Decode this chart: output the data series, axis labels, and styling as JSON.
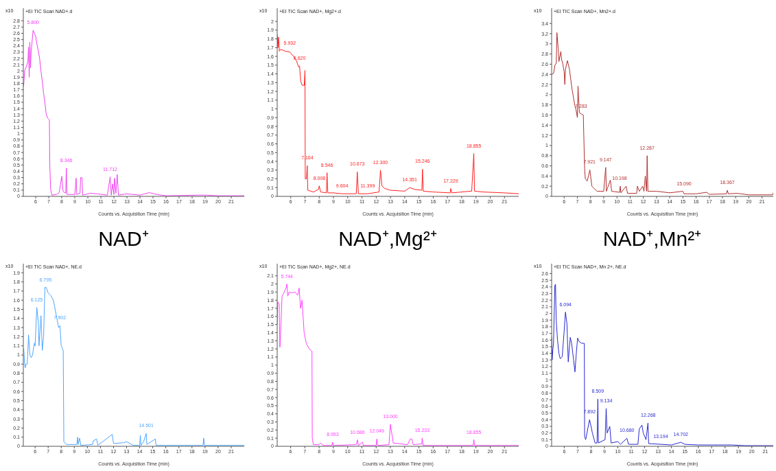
{
  "chart_data": [
    {
      "type": "line",
      "title": "NAD⁺",
      "subtitle": "+EI TIC Scan NAD+.d",
      "xlabel": "Counts vs. Acquisition Time (min)",
      "ylabel": "x10",
      "xlim": [
        5.05,
        22
      ],
      "xticks": [
        6,
        7,
        8,
        9,
        10,
        11,
        12,
        13,
        14,
        15,
        16,
        17,
        18,
        19,
        20,
        21
      ],
      "ylim": [
        0,
        3.0
      ],
      "yticks": [
        0,
        0.1,
        0.2,
        0.3,
        0.4,
        0.5,
        0.6,
        0.7,
        0.8,
        0.9,
        1,
        1.1,
        1.2,
        1.3,
        1.4,
        1.5,
        1.6,
        1.7,
        1.8,
        1.9,
        2,
        2.1,
        2.2,
        2.3,
        2.4,
        2.5,
        2.6,
        2.7,
        2.8
      ],
      "series": [
        {
          "color": "#f040f0",
          "x": [
            5.07,
            5.15,
            5.3,
            5.4,
            5.45,
            5.5,
            5.55,
            5.6,
            5.65,
            5.8,
            5.9,
            6.0,
            6.1,
            6.2,
            6.3,
            6.4,
            6.5,
            6.6,
            6.7,
            6.8,
            6.9,
            7.05,
            7.08,
            7.15,
            7.25,
            7.6,
            7.8,
            8.0,
            8.1,
            8.3,
            8.35,
            8.4,
            9.0,
            9.1,
            9.15,
            9.4,
            9.45,
            9.55,
            9.6,
            10.2,
            10.7,
            11.5,
            11.71,
            11.8,
            11.9,
            12.0,
            12.05,
            12.15,
            12.25,
            12.35,
            13.0,
            14.0,
            14.7,
            15.3,
            16,
            18.5,
            19,
            20,
            22
          ],
          "values": [
            1.75,
            2.0,
            2.08,
            2.15,
            2.38,
            1.9,
            2.46,
            2.05,
            2.3,
            2.65,
            2.6,
            2.55,
            2.42,
            2.32,
            2.2,
            2.0,
            1.85,
            1.65,
            1.5,
            1.32,
            1.25,
            1.22,
            0.5,
            0.1,
            0.02,
            0.03,
            0.06,
            0.32,
            0.08,
            0.05,
            0.45,
            0.03,
            0.03,
            0.29,
            0.03,
            0.05,
            0.3,
            0.3,
            0.02,
            0.05,
            0.04,
            0.02,
            0.31,
            0.02,
            0.2,
            0.03,
            0.29,
            0.05,
            0.35,
            0.02,
            0.04,
            0.02,
            0.06,
            0.03,
            0.01,
            0.02,
            0.02,
            0.01,
            0.01
          ]
        }
      ],
      "annotations": [
        {
          "text": "5.800",
          "x": 5.8,
          "y": 2.65
        },
        {
          "text": "8.346",
          "x": 8.346,
          "y": 0.45
        },
        {
          "text": "11.712",
          "x": 11.712,
          "y": 0.31
        }
      ]
    },
    {
      "type": "line",
      "title": "NAD⁺,Mg²⁺",
      "subtitle": "+EI TIC Scan NAD+, Mg2+.d",
      "xlabel": "Counts vs. Acquisition Time (min)",
      "ylabel": "x10",
      "xlim": [
        5.05,
        22
      ],
      "xticks": [
        6,
        7,
        8,
        9,
        10,
        11,
        12,
        13,
        14,
        15,
        16,
        17,
        18,
        19,
        20,
        21
      ],
      "ylim": [
        0,
        2.15
      ],
      "yticks": [
        0,
        0.1,
        0.2,
        0.3,
        0.4,
        0.5,
        0.6,
        0.7,
        0.8,
        0.9,
        1,
        1.1,
        1.2,
        1.3,
        1.4,
        1.5,
        1.6,
        1.7,
        1.8,
        1.9,
        2
      ],
      "series": [
        {
          "color": "#ff2020",
          "x": [
            5.05,
            5.1,
            5.15,
            5.2,
            5.3,
            5.6,
            5.93,
            6.2,
            6.4,
            6.55,
            6.62,
            6.7,
            6.8,
            6.95,
            7.0,
            7.02,
            7.1,
            7.16,
            7.2,
            7.6,
            7.95,
            8.0,
            8.1,
            8.5,
            8.55,
            8.6,
            9.0,
            9.6,
            10.6,
            10.67,
            10.75,
            11.4,
            12.2,
            12.3,
            12.4,
            12.6,
            13.0,
            14.0,
            14.35,
            14.7,
            15.2,
            15.25,
            15.3,
            16.0,
            17.2,
            17.23,
            17.3,
            18.7,
            18.85,
            18.9,
            19.5,
            21,
            22
          ],
          "values": [
            1.85,
            1.7,
            1.82,
            1.66,
            1.68,
            1.66,
            1.65,
            1.6,
            1.55,
            1.48,
            1.49,
            1.32,
            1.27,
            1.27,
            1.44,
            0.2,
            0.2,
            0.35,
            0.07,
            0.05,
            0.08,
            0.12,
            0.05,
            0.04,
            0.27,
            0.04,
            0.04,
            0.03,
            0.03,
            0.28,
            0.03,
            0.03,
            0.05,
            0.3,
            0.12,
            0.09,
            0.07,
            0.06,
            0.1,
            0.08,
            0.07,
            0.31,
            0.06,
            0.05,
            0.04,
            0.09,
            0.04,
            0.06,
            0.49,
            0.06,
            0.05,
            0.04,
            0.03
          ]
        }
      ],
      "annotations": [
        {
          "text": "5.932",
          "x": 5.932,
          "y": 1.66
        },
        {
          "text": "6.620",
          "x": 6.62,
          "y": 1.49
        },
        {
          "text": "7.164",
          "x": 7.164,
          "y": 0.35
        },
        {
          "text": "8.008",
          "x": 8.008,
          "y": 0.12
        },
        {
          "text": "8.546",
          "x": 8.546,
          "y": 0.27
        },
        {
          "text": "9.604",
          "x": 9.604,
          "y": 0.03
        },
        {
          "text": "10.673",
          "x": 10.673,
          "y": 0.28
        },
        {
          "text": "11.399",
          "x": 11.399,
          "y": 0.03
        },
        {
          "text": "12.300",
          "x": 12.3,
          "y": 0.3
        },
        {
          "text": "14.351",
          "x": 14.351,
          "y": 0.1
        },
        {
          "text": "15.246",
          "x": 15.246,
          "y": 0.31
        },
        {
          "text": "17.229",
          "x": 17.229,
          "y": 0.09
        },
        {
          "text": "18.855",
          "x": 18.855,
          "y": 0.49
        }
      ]
    },
    {
      "type": "line",
      "title": "NAD⁺,Mn²⁺",
      "subtitle": "+EI TIC Scan NAD+, Mn2+.d",
      "xlabel": "Counts vs. Acquisition Time (min)",
      "ylabel": "x10",
      "xlim": [
        5.05,
        21.85
      ],
      "xticks": [
        6,
        7,
        8,
        9,
        10,
        11,
        12,
        13,
        14,
        15,
        16,
        17,
        18,
        19,
        20,
        21
      ],
      "ylim": [
        0,
        3.7
      ],
      "yticks": [
        0,
        0.2,
        0.4,
        0.6,
        0.8,
        1,
        1.2,
        1.4,
        1.6,
        1.8,
        2,
        2.2,
        2.4,
        2.6,
        2.8,
        3,
        3.2,
        3.4
      ],
      "series": [
        {
          "color": "#b03030",
          "x": [
            5.07,
            5.2,
            5.3,
            5.4,
            5.45,
            5.55,
            5.6,
            5.75,
            5.8,
            5.9,
            6.0,
            6.05,
            6.1,
            6.25,
            6.4,
            6.6,
            6.8,
            6.9,
            7.0,
            7.05,
            7.15,
            7.3,
            7.45,
            7.55,
            7.6,
            7.75,
            7.95,
            8.1,
            8.5,
            9.0,
            9.05,
            9.15,
            9.2,
            9.5,
            9.6,
            10.2,
            10.25,
            10.3,
            10.7,
            10.8,
            11.5,
            11.55,
            11.7,
            11.95,
            12.05,
            12.15,
            12.25,
            12.29,
            12.35,
            13,
            14,
            15,
            15.09,
            16,
            16.8,
            17,
            18.3,
            18.37,
            18.45,
            19.1,
            20,
            21.8,
            21.85
          ],
          "values": [
            2.4,
            2.42,
            2.58,
            2.62,
            3.22,
            2.9,
            2.65,
            2.85,
            2.7,
            2.6,
            2.45,
            2.2,
            2.5,
            2.67,
            2.5,
            2.1,
            1.8,
            1.7,
            1.55,
            2.17,
            1.65,
            1.62,
            1.6,
            0.55,
            0.35,
            0.3,
            0.52,
            0.2,
            0.1,
            0.1,
            0.27,
            0.57,
            0.1,
            0.32,
            0.1,
            0.08,
            0.2,
            0.07,
            0.2,
            0.06,
            0.06,
            0.2,
            0.1,
            0.2,
            0.1,
            0.4,
            0.1,
            0.8,
            0.1,
            0.1,
            0.07,
            0.1,
            0.05,
            0.05,
            0.08,
            0.04,
            0.05,
            0.12,
            0.05,
            0.06,
            0.03,
            0.03,
            0.07
          ]
        }
      ],
      "annotations": [
        {
          "text": "7.283",
          "x": 7.283,
          "y": 1.62
        },
        {
          "text": "7.921",
          "x": 7.921,
          "y": 0.52
        },
        {
          "text": "9.147",
          "x": 9.147,
          "y": 0.57
        },
        {
          "text": "10.198",
          "x": 10.198,
          "y": 0.2
        },
        {
          "text": "12.287",
          "x": 12.287,
          "y": 0.8
        },
        {
          "text": "15.090",
          "x": 15.09,
          "y": 0.1
        },
        {
          "text": "18.367",
          "x": 18.367,
          "y": 0.12
        }
      ]
    },
    {
      "type": "line",
      "subtitle": "+EI TIC Scan NAD+, NE.d",
      "xlabel": "Counts vs. Acquisition Time (min)",
      "ylabel": "x10",
      "xlim": [
        5.1,
        22
      ],
      "xticks": [
        6,
        7,
        8,
        9,
        10,
        11,
        12,
        13,
        14,
        15,
        16,
        17,
        18,
        19,
        20,
        21
      ],
      "ylim": [
        0,
        2.0
      ],
      "yticks": [
        0,
        0.1,
        0.2,
        0.3,
        0.4,
        0.5,
        0.6,
        0.7,
        0.8,
        0.9,
        1,
        1.1,
        1.2,
        1.3,
        1.4,
        1.5,
        1.6,
        1.7,
        1.8,
        1.9
      ],
      "series": [
        {
          "color": "#4da6ff",
          "x": [
            5.13,
            5.2,
            5.25,
            5.3,
            5.4,
            5.5,
            5.6,
            5.7,
            5.8,
            5.95,
            6.0,
            6.13,
            6.25,
            6.3,
            6.45,
            6.55,
            6.65,
            6.75,
            6.85,
            7.0,
            7.2,
            7.4,
            7.6,
            7.8,
            7.9,
            8.0,
            8.15,
            8.2,
            8.4,
            9.2,
            9.25,
            9.3,
            9.4,
            9.5,
            10.4,
            10.45,
            10.7,
            10.8,
            11.9,
            12.0,
            12.8,
            13.0,
            13.5,
            14.0,
            14.05,
            14.1,
            14.3,
            14.5,
            14.55,
            15.2,
            15.25,
            16,
            18.85,
            18.9,
            18.95,
            22
          ],
          "values": [
            1.07,
            0.9,
            0.86,
            0.9,
            0.9,
            1.22,
            1.0,
            0.97,
            1.0,
            1.13,
            1.1,
            1.52,
            1.35,
            1.1,
            1.43,
            1.05,
            1.2,
            1.74,
            1.74,
            1.68,
            1.65,
            1.6,
            1.45,
            1.3,
            1.32,
            1.1,
            1.05,
            0.05,
            0.02,
            0.02,
            0.1,
            0.02,
            0.09,
            0.01,
            0.02,
            0.06,
            0.08,
            0.01,
            0.13,
            0.03,
            0.04,
            0.05,
            0.01,
            0.01,
            0.12,
            0.01,
            0.05,
            0.14,
            0.02,
            0.08,
            0.01,
            0.01,
            0.01,
            0.09,
            0.01,
            0.01
          ]
        }
      ],
      "annotations": [
        {
          "text": "6.125",
          "x": 6.125,
          "y": 1.52
        },
        {
          "text": "6.795",
          "x": 6.795,
          "y": 1.74
        },
        {
          "text": "7.902",
          "x": 7.902,
          "y": 1.32
        },
        {
          "text": "14.501",
          "x": 14.501,
          "y": 0.14
        }
      ]
    },
    {
      "type": "line",
      "subtitle": "+EI TIC Scan NAD+, Mg2+, NE.d",
      "xlabel": "Counts vs. Acquisition Time (min)",
      "ylabel": "x10",
      "xlim": [
        5.06,
        22
      ],
      "xticks": [
        6,
        7,
        8,
        9,
        10,
        11,
        12,
        13,
        14,
        15,
        16,
        17,
        18,
        19,
        20,
        21
      ],
      "ylim": [
        0,
        2.25
      ],
      "yticks": [
        0,
        0.1,
        0.2,
        0.3,
        0.4,
        0.5,
        0.6,
        0.7,
        0.8,
        0.9,
        1,
        1.1,
        1.2,
        1.3,
        1.4,
        1.5,
        1.6,
        1.7,
        1.8,
        1.9,
        2,
        2.1
      ],
      "series": [
        {
          "color": "#ff40ff",
          "x": [
            5.06,
            5.1,
            5.2,
            5.25,
            5.3,
            5.4,
            5.5,
            5.6,
            5.7,
            5.74,
            5.8,
            5.9,
            6.1,
            6.3,
            6.5,
            6.6,
            6.7,
            6.8,
            6.95,
            7.1,
            7.3,
            7.5,
            7.52,
            7.6,
            8.0,
            8.1,
            8.3,
            8.9,
            8.95,
            9.0,
            10.6,
            10.69,
            10.75,
            11.05,
            11.1,
            12.0,
            12.05,
            12.1,
            12.9,
            13.0,
            13.2,
            14.2,
            14.4,
            14.5,
            14.6,
            15.2,
            15.23,
            15.3,
            18.8,
            18.86,
            18.9,
            22
          ],
          "values": [
            1.5,
            1.78,
            1.75,
            1.22,
            1.4,
            1.85,
            1.88,
            1.92,
            1.96,
            2.0,
            1.85,
            1.9,
            1.89,
            1.9,
            1.86,
            1.95,
            1.7,
            1.8,
            1.4,
            1.27,
            1.2,
            1.17,
            0.1,
            0.02,
            0.02,
            0.04,
            0.01,
            0.01,
            0.05,
            0.01,
            0.02,
            0.08,
            0.01,
            0.05,
            0.01,
            0.01,
            0.09,
            0.01,
            0.02,
            0.27,
            0.04,
            0.02,
            0.09,
            0.09,
            0.02,
            0.03,
            0.1,
            0.01,
            0.01,
            0.08,
            0.01,
            0.01
          ]
        }
      ],
      "annotations": [
        {
          "text": "5.744",
          "x": 5.744,
          "y": 2.0
        },
        {
          "text": "8.953",
          "x": 8.953,
          "y": 0.05
        },
        {
          "text": "10.686",
          "x": 10.686,
          "y": 0.08
        },
        {
          "text": "12.049",
          "x": 12.049,
          "y": 0.09
        },
        {
          "text": "13.000",
          "x": 13.0,
          "y": 0.27
        },
        {
          "text": "15.233",
          "x": 15.233,
          "y": 0.1
        },
        {
          "text": "18.855",
          "x": 18.855,
          "y": 0.08
        }
      ]
    },
    {
      "type": "line",
      "subtitle": "+EI TIC Scan NAD+, Mn 2+, NE.d",
      "xlabel": "Counts vs. Acquisition Time (min)",
      "ylabel": "x10",
      "xlim": [
        5.06,
        21.6
      ],
      "xticks": [
        6,
        7,
        8,
        9,
        10,
        11,
        12,
        13,
        14,
        15,
        16,
        17,
        18,
        19,
        20,
        21
      ],
      "ylim": [
        0,
        2.75
      ],
      "yticks": [
        0,
        0.1,
        0.2,
        0.3,
        0.4,
        0.5,
        0.6,
        0.7,
        0.8,
        0.9,
        1,
        1.1,
        1.2,
        1.3,
        1.4,
        1.5,
        1.6,
        1.7,
        1.8,
        1.9,
        2,
        2.1,
        2.2,
        2.3,
        2.4,
        2.5,
        2.6
      ],
      "series": [
        {
          "color": "#2828d0",
          "x": [
            5.06,
            5.1,
            5.15,
            5.2,
            5.3,
            5.35,
            5.4,
            5.5,
            5.6,
            5.7,
            5.85,
            6.0,
            6.09,
            6.2,
            6.3,
            6.45,
            6.55,
            6.7,
            6.8,
            6.9,
            7.0,
            7.1,
            7.3,
            7.5,
            7.52,
            7.6,
            7.89,
            8.0,
            8.1,
            8.3,
            8.45,
            8.51,
            8.55,
            9.05,
            9.13,
            9.2,
            9.4,
            9.5,
            10.0,
            10.2,
            10.68,
            10.8,
            11.5,
            11.6,
            11.8,
            11.9,
            12.1,
            12.25,
            12.3,
            13.2,
            14.0,
            14.7,
            15.0,
            16,
            18.5,
            19.5,
            21.6
          ],
          "values": [
            1.65,
            1.3,
            1.45,
            1.55,
            2.42,
            2.44,
            1.9,
            1.6,
            1.4,
            1.32,
            1.35,
            1.75,
            2.02,
            1.85,
            1.27,
            1.64,
            1.55,
            1.3,
            1.12,
            1.4,
            1.63,
            1.58,
            1.55,
            1.55,
            0.15,
            0.1,
            0.4,
            0.3,
            0.2,
            0.05,
            0.05,
            0.71,
            0.05,
            0.1,
            0.57,
            0.2,
            0.3,
            0.05,
            0.07,
            0.03,
            0.12,
            0.03,
            0.03,
            0.26,
            0.32,
            0.2,
            0.1,
            0.35,
            0.04,
            0.03,
            0.02,
            0.06,
            0.03,
            0.02,
            0.02,
            0.01,
            0.01
          ]
        }
      ],
      "annotations": [
        {
          "text": "6.094",
          "x": 6.094,
          "y": 2.02
        },
        {
          "text": "7.892",
          "x": 7.892,
          "y": 0.4
        },
        {
          "text": "8.509",
          "x": 8.509,
          "y": 0.71
        },
        {
          "text": "9.134",
          "x": 9.134,
          "y": 0.57
        },
        {
          "text": "10.680",
          "x": 10.68,
          "y": 0.12
        },
        {
          "text": "12.268",
          "x": 12.268,
          "y": 0.35
        },
        {
          "text": "13.194",
          "x": 13.194,
          "y": 0.03
        },
        {
          "text": "14.702",
          "x": 14.702,
          "y": 0.06
        }
      ]
    }
  ]
}
